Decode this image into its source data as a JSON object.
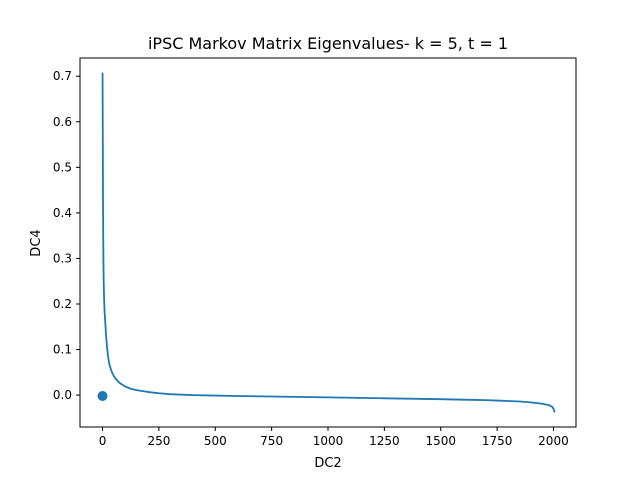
{
  "colors": {
    "series": "#1f77b4",
    "axes": "#000000",
    "background": "#ffffff"
  },
  "chart_data": {
    "type": "line",
    "title": "iPSC Markov Matrix Eigenvalues-  k = 5, t = 1",
    "xlabel": "DC2",
    "ylabel": "DC4",
    "xlim": [
      -100,
      2100
    ],
    "ylim": [
      -0.07,
      0.74
    ],
    "grid": false,
    "legend": "none",
    "xticks": [
      0,
      250,
      500,
      750,
      1000,
      1250,
      1500,
      1750,
      2000
    ],
    "xtick_labels": [
      "0",
      "250",
      "500",
      "750",
      "1000",
      "1250",
      "1500",
      "1750",
      "2000"
    ],
    "yticks": [
      0.0,
      0.1,
      0.2,
      0.3,
      0.4,
      0.5,
      0.6,
      0.7
    ],
    "ytick_labels": [
      "0.0",
      "0.1",
      "0.2",
      "0.3",
      "0.4",
      "0.5",
      "0.6",
      "0.7"
    ],
    "series": [
      {
        "type": "line",
        "x": [
          0,
          1,
          2,
          3,
          4,
          5,
          7,
          9,
          12,
          15,
          20,
          25,
          30,
          40,
          50,
          60,
          75,
          100,
          125,
          150,
          200,
          250,
          300,
          400,
          500,
          600,
          750,
          1000,
          1250,
          1500,
          1600,
          1700,
          1750,
          1800,
          1850,
          1900,
          1950,
          1980,
          1995,
          2000,
          2003,
          2005
        ],
        "y": [
          0.708,
          0.58,
          0.43,
          0.35,
          0.29,
          0.25,
          0.21,
          0.183,
          0.16,
          0.135,
          0.105,
          0.083,
          0.068,
          0.052,
          0.042,
          0.035,
          0.027,
          0.019,
          0.014,
          0.011,
          0.007,
          0.004,
          0.002,
          0.0,
          -0.001,
          -0.002,
          -0.003,
          -0.005,
          -0.007,
          -0.009,
          -0.01,
          -0.011,
          -0.012,
          -0.013,
          -0.014,
          -0.016,
          -0.019,
          -0.022,
          -0.026,
          -0.03,
          -0.034,
          -0.038
        ]
      },
      {
        "type": "scatter",
        "x": [
          0
        ],
        "y": [
          -0.002
        ]
      }
    ]
  }
}
